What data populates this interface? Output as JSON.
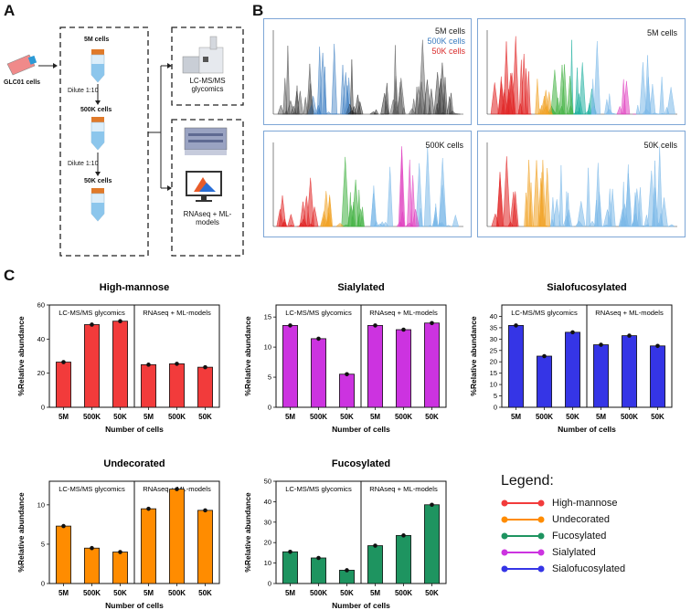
{
  "panels": {
    "a": "A",
    "b": "B",
    "c": "C"
  },
  "workflow": {
    "cells_label": "GLC01 cells",
    "tube1": "5M cells",
    "dilute1": "Dilute 1:10",
    "tube2": "500K cells",
    "dilute2": "Dilute 1:10",
    "tube3": "50K cells",
    "method1": "LC-MS/MS glycomics",
    "method2": "RNAseq + ML-models"
  },
  "chromatograms": {
    "overlay_legend": [
      {
        "label": "5M cells",
        "color": "#222222"
      },
      {
        "label": "500K cells",
        "color": "#3a7cc0"
      },
      {
        "label": "50K cells",
        "color": "#d92b2b"
      }
    ],
    "tr_label": "5M cells",
    "bl_label": "500K cells",
    "br_label": "50K cells"
  },
  "colors": {
    "high_mannose": "#f23b3b",
    "undecorated": "#ff8c00",
    "fucosylated": "#1e9460",
    "sialylated": "#cc33e0",
    "sialofucosylated": "#3535e6"
  },
  "common": {
    "xlabel": "Number of cells",
    "ylabel": "%Relative abundance",
    "group1": "LC-MS/MS glycomics",
    "group2": "RNAseq + ML-models"
  },
  "chart_data": [
    {
      "type": "bar",
      "title": "High-mannose",
      "color_key": "high_mannose",
      "categories": [
        "5M",
        "500K",
        "50K",
        "5M",
        "500K",
        "50K"
      ],
      "values": [
        26.5,
        48.5,
        50.5,
        25,
        25.5,
        23.5
      ],
      "ylim": [
        0,
        60
      ],
      "yticks": [
        0,
        20,
        40,
        60
      ]
    },
    {
      "type": "bar",
      "title": "Sialylated",
      "color_key": "sialylated",
      "categories": [
        "5M",
        "500K",
        "50K",
        "5M",
        "500K",
        "50K"
      ],
      "values": [
        13.6,
        11.4,
        5.5,
        13.6,
        12.9,
        14
      ],
      "ylim": [
        0,
        17
      ],
      "yticks": [
        0,
        5,
        10,
        15
      ]
    },
    {
      "type": "bar",
      "title": "Sialofucosylated",
      "color_key": "sialofucosylated",
      "categories": [
        "5M",
        "500K",
        "50K",
        "5M",
        "500K",
        "50K"
      ],
      "values": [
        36,
        22.5,
        33,
        27.5,
        31.5,
        27
      ],
      "ylim": [
        0,
        45
      ],
      "yticks": [
        0,
        5,
        10,
        15,
        20,
        25,
        30,
        35,
        40
      ]
    },
    {
      "type": "bar",
      "title": "Undecorated",
      "color_key": "undecorated",
      "categories": [
        "5M",
        "500K",
        "50K",
        "5M",
        "500K",
        "50K"
      ],
      "values": [
        7.3,
        4.5,
        4,
        9.5,
        12,
        9.3
      ],
      "ylim": [
        0,
        13
      ],
      "yticks": [
        0,
        5,
        10
      ]
    },
    {
      "type": "bar",
      "title": "Fucosylated",
      "color_key": "fucosylated",
      "categories": [
        "5M",
        "500K",
        "50K",
        "5M",
        "500K",
        "50K"
      ],
      "values": [
        15.5,
        12.5,
        6.5,
        18.5,
        23.5,
        38.5
      ],
      "ylim": [
        0,
        50
      ],
      "yticks": [
        0,
        10,
        20,
        30,
        40,
        50
      ]
    }
  ],
  "legend": {
    "title": "Legend:",
    "items": [
      {
        "label": "High-mannose",
        "color": "#f23b3b"
      },
      {
        "label": "Undecorated",
        "color": "#ff8c00"
      },
      {
        "label": "Fucosylated",
        "color": "#1e9460"
      },
      {
        "label": "Sialylated",
        "color": "#cc33e0"
      },
      {
        "label": "Sialofucosylated",
        "color": "#3535e6"
      }
    ]
  }
}
